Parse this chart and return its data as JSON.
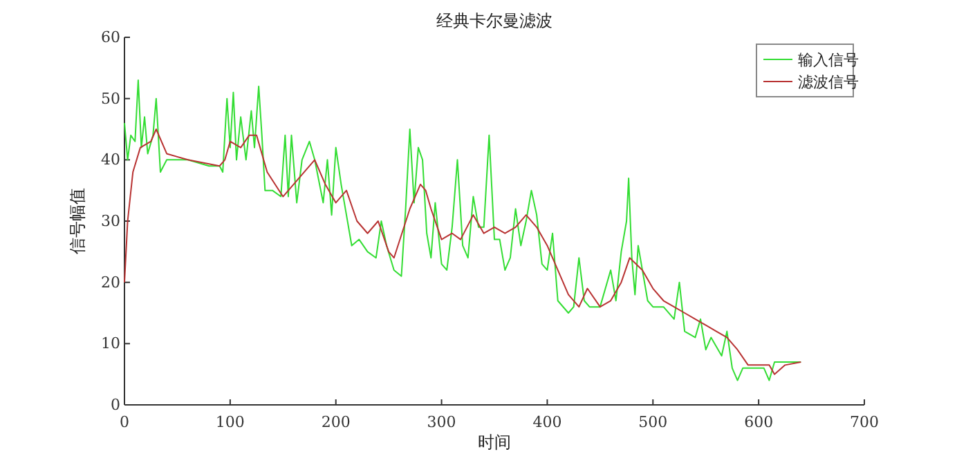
{
  "chart_data": {
    "type": "line",
    "title": "经典卡尔曼滤波",
    "xlabel": "时间",
    "ylabel": "信号幅值",
    "xlim": [
      0,
      700
    ],
    "xticks": [
      0,
      100,
      200,
      300,
      400,
      500,
      600,
      700
    ],
    "ylim": [
      0,
      60
    ],
    "yticks": [
      0,
      10,
      20,
      30,
      40,
      50,
      60
    ],
    "grid": false,
    "legend": "top right",
    "line_style": "solid",
    "marker": "none",
    "series": [
      {
        "name": "输入信号",
        "color": "#33dd33",
        "x": [
          0,
          3,
          6,
          10,
          13,
          16,
          19,
          22,
          27,
          30,
          34,
          40,
          50,
          60,
          80,
          90,
          93,
          97,
          100,
          103,
          106,
          110,
          115,
          120,
          123,
          127,
          130,
          133,
          140,
          148,
          152,
          155,
          158,
          163,
          168,
          175,
          180,
          188,
          192,
          196,
          200,
          205,
          210,
          215,
          222,
          230,
          238,
          243,
          248,
          255,
          262,
          266,
          270,
          274,
          278,
          282,
          286,
          290,
          294,
          300,
          305,
          310,
          315,
          320,
          325,
          330,
          335,
          340,
          345,
          350,
          355,
          360,
          365,
          370,
          375,
          380,
          385,
          390,
          395,
          400,
          405,
          410,
          420,
          425,
          430,
          435,
          440,
          450,
          460,
          465,
          470,
          475,
          477,
          480,
          483,
          486,
          490,
          495,
          500,
          510,
          520,
          525,
          530,
          540,
          545,
          550,
          555,
          565,
          570,
          575,
          580,
          585,
          590,
          600,
          605,
          610,
          615,
          625,
          640
        ],
        "values": [
          46,
          40,
          44,
          43,
          53,
          42,
          47,
          41,
          44,
          50,
          38,
          40,
          40,
          40,
          39,
          39,
          38,
          50,
          42,
          51,
          40,
          47,
          40,
          48,
          42,
          52,
          44,
          35,
          35,
          34,
          44,
          34,
          44,
          33,
          40,
          43,
          40,
          33,
          40,
          31,
          42,
          36,
          31,
          26,
          27,
          25,
          24,
          30,
          26,
          22,
          21,
          32,
          45,
          33,
          42,
          40,
          28,
          24,
          33,
          23,
          22,
          29,
          40,
          26,
          24,
          34,
          29,
          29,
          44,
          27,
          27,
          22,
          24,
          32,
          26,
          30,
          35,
          31,
          23,
          22,
          28,
          17,
          15,
          16,
          24,
          17,
          16,
          16,
          22,
          17,
          25,
          30,
          37,
          24,
          18,
          26,
          22,
          17,
          16,
          16,
          14,
          20,
          12,
          11,
          14,
          9,
          11,
          8,
          12,
          6,
          4,
          6,
          6,
          6,
          6,
          4,
          7,
          7,
          7
        ]
      },
      {
        "name": "滤波信号",
        "color": "#b83232",
        "x": [
          0,
          3,
          8,
          15,
          25,
          30,
          40,
          60,
          90,
          95,
          100,
          110,
          118,
          125,
          135,
          150,
          160,
          170,
          180,
          190,
          200,
          210,
          220,
          230,
          240,
          250,
          255,
          270,
          280,
          285,
          290,
          300,
          310,
          318,
          330,
          340,
          350,
          360,
          370,
          380,
          390,
          400,
          410,
          420,
          430,
          438,
          450,
          460,
          470,
          478,
          490,
          500,
          510,
          520,
          530,
          540,
          550,
          560,
          570,
          580,
          590,
          600,
          610,
          615,
          625,
          640
        ],
        "values": [
          20,
          30,
          38,
          42,
          43,
          45,
          41,
          40,
          39,
          40,
          43,
          42,
          44,
          44,
          38,
          34,
          36,
          38,
          40,
          36,
          33,
          35,
          30,
          28,
          30,
          25,
          24,
          32,
          36,
          35,
          32,
          27,
          28,
          27,
          31,
          28,
          29,
          28,
          29,
          31,
          29,
          26,
          22,
          18,
          16,
          19,
          16,
          17,
          20,
          24,
          22,
          19,
          17,
          16,
          15,
          14,
          13,
          12,
          11,
          9,
          6.5,
          6.5,
          6.5,
          5,
          6.5,
          7
        ]
      }
    ]
  }
}
